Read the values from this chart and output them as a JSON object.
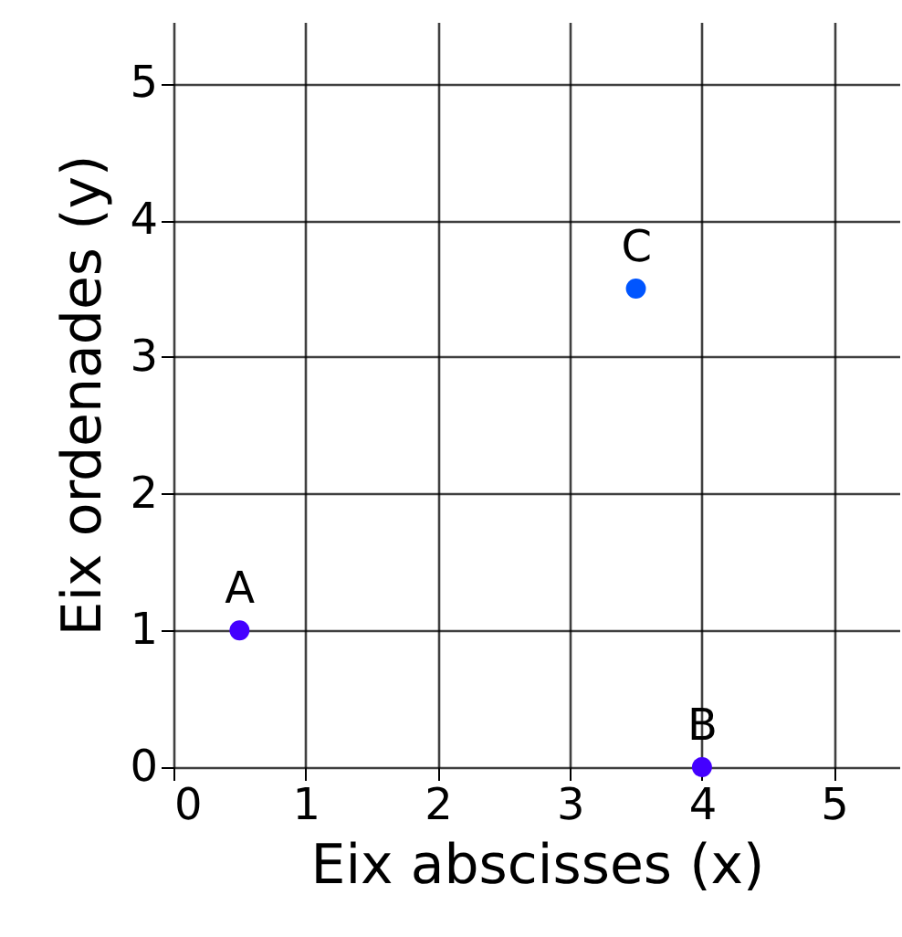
{
  "chart_data": {
    "type": "scatter",
    "xlabel": "Eix abscisses (x)",
    "ylabel": "Eix ordenades (y)",
    "x": [
      0.5,
      4,
      3.5
    ],
    "values": [
      1,
      0,
      3.5
    ],
    "colors": [
      "#4400ff",
      "#4400ff",
      "#0055ff"
    ],
    "xlim": [
      0,
      5.5
    ],
    "ylim": [
      0,
      5.45
    ],
    "xticks": [
      0,
      1,
      2,
      3,
      4,
      5
    ],
    "yticks": [
      0,
      1,
      2,
      3,
      4,
      5
    ],
    "grid": true,
    "marker": "circle",
    "annotations": [
      {
        "text": "A",
        "x": 0.5,
        "y": 1
      },
      {
        "text": "B",
        "x": 4,
        "y": 0
      },
      {
        "text": "C",
        "x": 3.5,
        "y": 3.5
      }
    ]
  }
}
